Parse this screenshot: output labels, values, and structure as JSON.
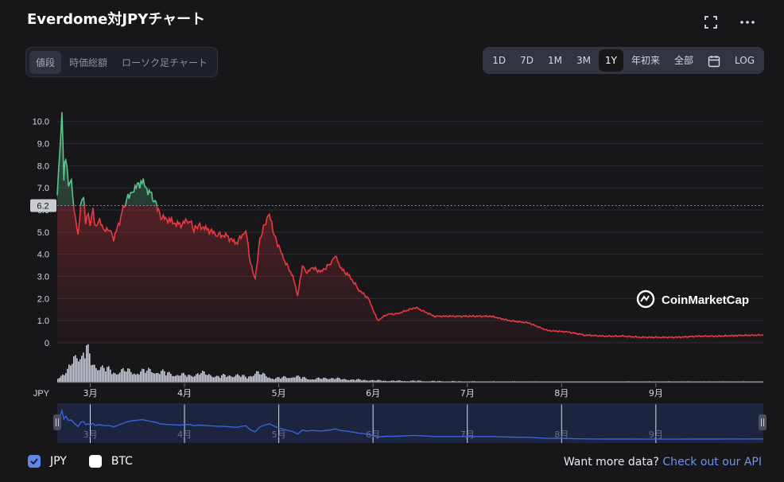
{
  "header": {
    "title": "Everdome対JPYチャート"
  },
  "icons": {
    "fullscreen": "fullscreen-icon",
    "more": "more-icon",
    "calendar": "calendar-icon",
    "check": "check-icon"
  },
  "tabs": [
    {
      "label": "値段",
      "active": true
    },
    {
      "label": "時価総額",
      "active": false
    },
    {
      "label": "ローソク足チャート",
      "active": false
    }
  ],
  "ranges": [
    {
      "label": "1D",
      "active": false
    },
    {
      "label": "7D",
      "active": false
    },
    {
      "label": "1M",
      "active": false
    },
    {
      "label": "3M",
      "active": false
    },
    {
      "label": "1Y",
      "active": true
    },
    {
      "label": "年初来",
      "active": false
    },
    {
      "label": "全部",
      "active": false
    },
    {
      "label": "",
      "icon": "calendar-icon",
      "active": false
    },
    {
      "label": "LOG",
      "active": false
    }
  ],
  "watermark": "CoinMarketCap",
  "legend": [
    {
      "label": "JPY",
      "checked": true
    },
    {
      "label": "BTC",
      "checked": false
    }
  ],
  "footer": {
    "text": "Want more data?",
    "link": "Check out our API"
  },
  "colors": {
    "up": "#5cc489",
    "down": "#ea3943",
    "navigator": "#3b63d9",
    "background": "#17171a"
  },
  "chart_data": {
    "type": "line",
    "title": "",
    "x_unit_label": "JPY",
    "x_ticks": [
      "3月",
      "4月",
      "5月",
      "6月",
      "7月",
      "8月",
      "9月"
    ],
    "y_ticks": [
      0,
      1.0,
      2.0,
      3.0,
      4.0,
      5.0,
      6.0,
      7.0,
      8.0,
      9.0,
      10.0
    ],
    "ylim": [
      0,
      10.6
    ],
    "baseline_value": 6.2,
    "current_label": "6.2",
    "grid": true,
    "month_index": [
      0.35,
      1.35,
      2.35,
      3.35,
      4.35,
      5.35,
      6.35
    ],
    "series": [
      {
        "x": [
          0,
          0.03,
          0.05,
          0.07,
          0.09,
          0.12,
          0.15,
          0.18,
          0.22,
          0.25,
          0.28,
          0.3,
          0.33,
          0.35,
          0.38,
          0.4,
          0.45,
          0.5,
          0.55,
          0.6,
          0.7,
          0.75,
          0.8,
          0.9,
          1.0,
          1.05,
          1.1,
          1.2,
          1.3,
          1.4,
          1.45,
          1.5,
          1.6,
          1.7,
          1.8,
          1.9,
          2.0,
          2.05,
          2.1,
          2.15,
          2.2,
          2.25,
          2.3,
          2.4,
          2.5,
          2.55,
          2.6,
          2.65,
          2.7,
          2.8,
          2.9,
          2.95,
          3.0,
          3.1,
          3.2,
          3.3,
          3.4,
          3.5,
          3.6,
          3.8,
          4.0,
          4.2,
          4.4,
          4.6,
          4.8,
          5.0,
          5.2,
          5.4,
          5.6,
          5.8,
          6.0,
          6.2,
          6.4,
          6.6,
          6.8,
          7.0,
          7.2,
          7.49
        ],
        "values": [
          6.8,
          8.8,
          10.5,
          7.5,
          8.5,
          7.0,
          7.2,
          6.0,
          4.8,
          6.4,
          6.6,
          5.5,
          5.8,
          5.3,
          6.0,
          5.2,
          5.5,
          5.1,
          5.2,
          4.7,
          6.0,
          6.6,
          6.9,
          7.3,
          6.6,
          6.3,
          5.7,
          5.5,
          5.3,
          5.6,
          5.1,
          5.3,
          5.1,
          4.9,
          4.8,
          4.5,
          5.1,
          3.6,
          2.9,
          4.7,
          5.3,
          5.8,
          4.9,
          3.8,
          3.0,
          2.1,
          3.5,
          3.2,
          3.4,
          3.2,
          3.6,
          4.0,
          3.4,
          3.0,
          2.4,
          2.0,
          1.0,
          1.3,
          1.3,
          1.6,
          1.2,
          1.2,
          1.2,
          1.2,
          1.0,
          0.9,
          0.55,
          0.5,
          0.35,
          0.3,
          0.3,
          0.25,
          0.25,
          0.25,
          0.3,
          0.3,
          0.33,
          0.35
        ]
      }
    ],
    "volume_x": [
      0,
      0.1,
      0.2,
      0.25,
      0.3,
      0.35,
      0.4,
      0.5,
      0.6,
      0.7,
      0.8,
      1.0,
      1.2,
      1.4,
      1.5,
      1.7,
      1.9,
      2.0,
      2.1,
      2.2,
      2.3,
      2.5,
      2.7,
      2.9,
      3.0,
      3.2,
      3.4,
      3.6,
      3.8,
      4.0,
      4.5,
      5.0,
      5.5,
      6.0,
      6.5,
      7.0,
      7.49
    ],
    "volume": [
      15,
      30,
      90,
      70,
      100,
      60,
      50,
      40,
      30,
      35,
      30,
      35,
      25,
      20,
      28,
      18,
      22,
      15,
      30,
      20,
      12,
      18,
      10,
      14,
      10,
      8,
      6,
      5,
      5,
      4,
      3,
      3,
      2,
      3,
      3,
      3,
      3
    ]
  }
}
